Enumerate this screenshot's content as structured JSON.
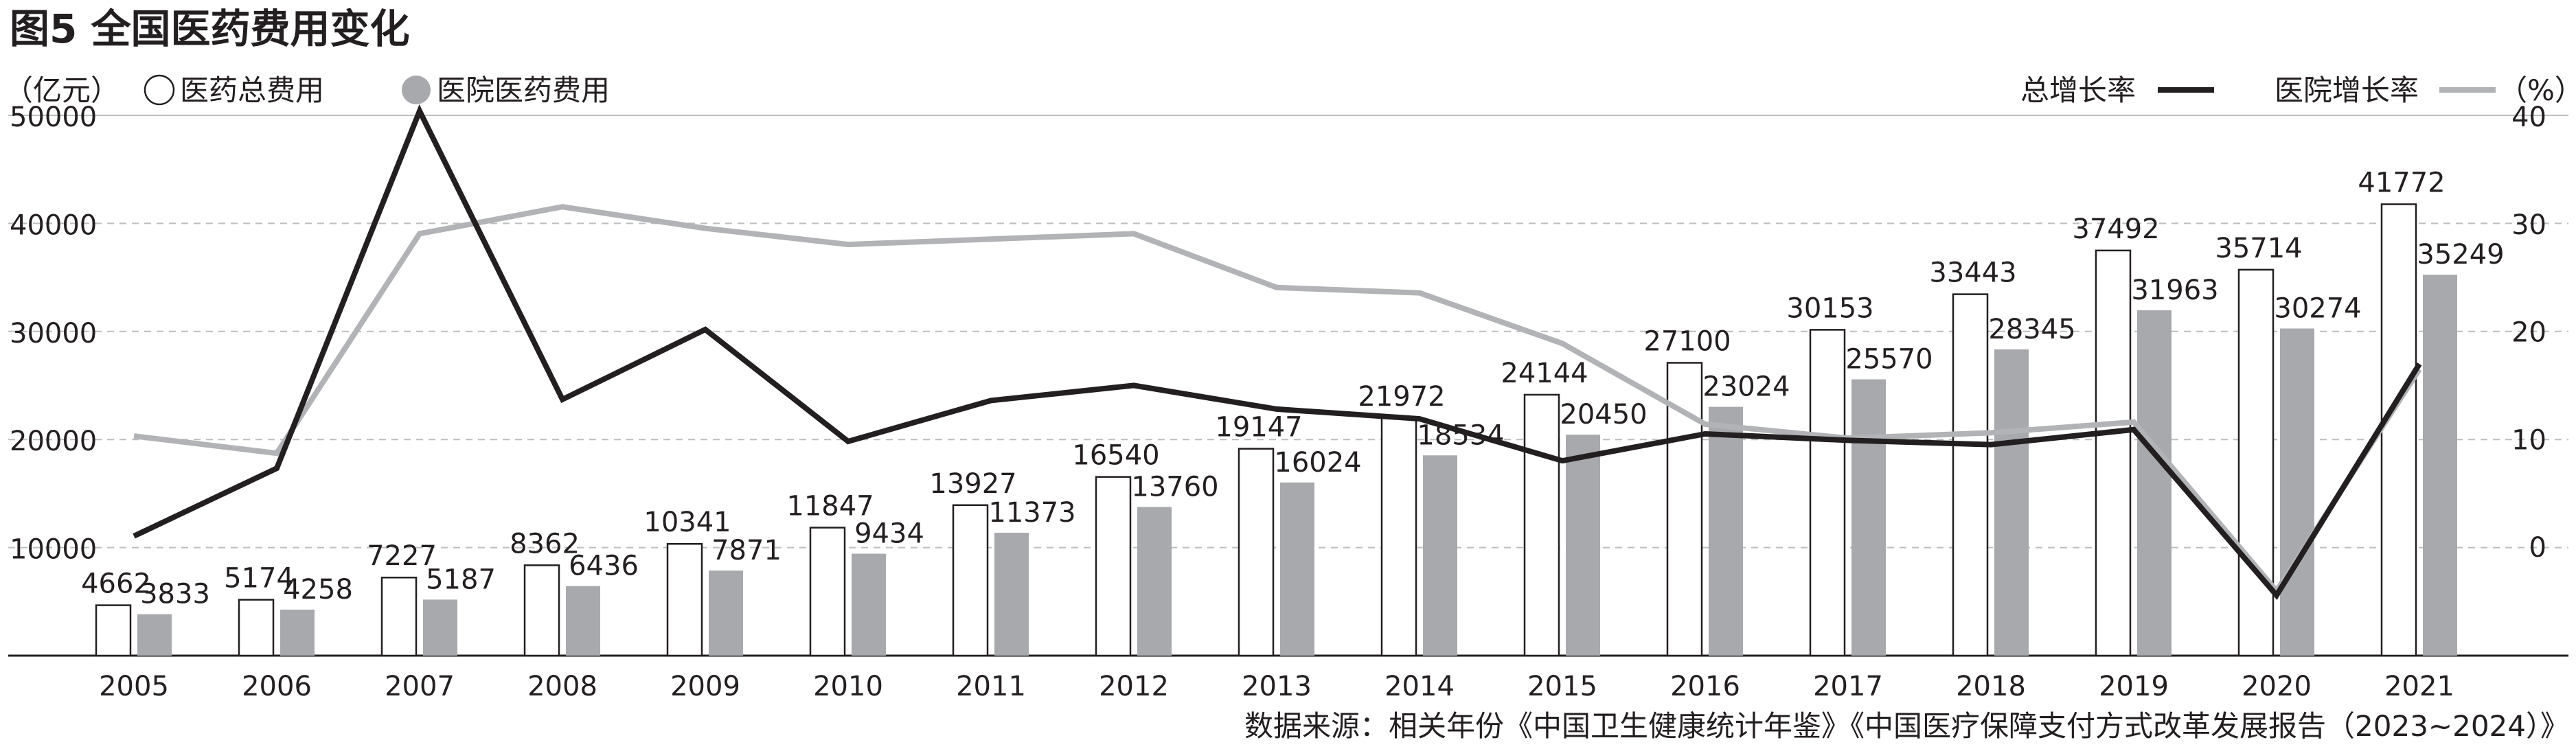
{
  "title": "图5 全国医药费用变化",
  "legend": {
    "left_unit": "（亿元）",
    "total_cost": "医药总费用",
    "hospital_cost": "医院医药费用",
    "total_growth": "总增长率",
    "hospital_growth": "医院增长率",
    "right_unit": "（%）"
  },
  "source": "数据来源：相关年份《中国卫生健康统计年鉴》《中国医疗保障支付方式改革发展报告（2023~2024）》",
  "colors": {
    "total_bar_fill": "#ffffff",
    "hospital_bar_fill": "#a7a9ac",
    "total_growth_line": "#231f20",
    "hospital_growth_line": "#b1b3b6",
    "gridline": "#bcbec0",
    "text": "#231f20"
  },
  "chart_data": {
    "type": "bar",
    "categories": [
      "2005",
      "2006",
      "2007",
      "2008",
      "2009",
      "2010",
      "2011",
      "2012",
      "2013",
      "2014",
      "2015",
      "2016",
      "2017",
      "2018",
      "2019",
      "2020",
      "2021"
    ],
    "series": [
      {
        "name": "医药总费用",
        "axis": "left",
        "values": [
          4662,
          5174,
          7227,
          8362,
          10341,
          11847,
          13927,
          16540,
          19147,
          21972,
          24144,
          27100,
          30153,
          33443,
          37492,
          35714,
          41772
        ]
      },
      {
        "name": "医院医药费用",
        "axis": "left",
        "values": [
          3833,
          4258,
          5187,
          6436,
          7871,
          9434,
          11373,
          13760,
          16024,
          18534,
          20450,
          23024,
          25570,
          28345,
          31963,
          30274,
          35249
        ]
      },
      {
        "name": "总增长率",
        "axis": "right",
        "type": "line",
        "values": [
          0.9,
          7.2,
          40.4,
          13.6,
          20.1,
          9.7,
          13.5,
          14.9,
          12.7,
          11.8,
          7.9,
          10.4,
          9.8,
          9.4,
          10.8,
          -4.6,
          16.9
        ]
      },
      {
        "name": "医院增长率",
        "axis": "right",
        "type": "line",
        "values": [
          10.2,
          8.6,
          29.0,
          31.5,
          29.5,
          28.0,
          28.5,
          29.0,
          24.0,
          23.5,
          18.8,
          11.3,
          10.0,
          10.5,
          11.5,
          -4.2,
          16.4
        ]
      }
    ],
    "y_left": {
      "ticks": [
        10000,
        20000,
        30000,
        40000,
        50000
      ],
      "range": [
        0,
        50000
      ]
    },
    "y_right": {
      "ticks": [
        0,
        10,
        20,
        30,
        40
      ],
      "range": [
        -8,
        40
      ]
    },
    "grid": true
  }
}
